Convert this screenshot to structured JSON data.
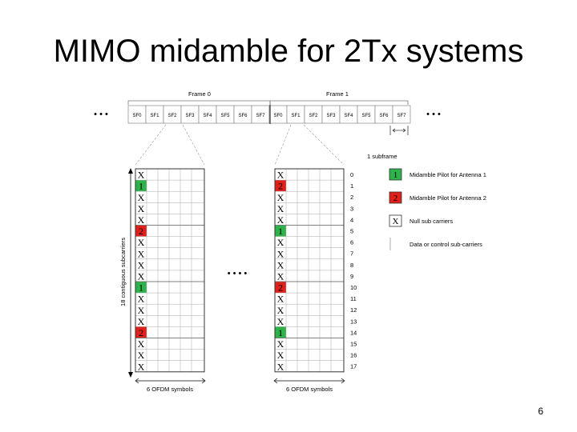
{
  "slide": {
    "title": "MIMO midamble for 2Tx systems",
    "page_number": "6"
  },
  "frames": {
    "frame0_label": "Frame 0",
    "frame1_label": "Frame 1",
    "ellipsis": "• • •",
    "subframes": [
      "SF0",
      "SF1",
      "SF2",
      "SF3",
      "SF4",
      "SF5",
      "SF6",
      "SF7",
      "SF0",
      "SF1",
      "SF2",
      "SF3",
      "SF4",
      "SF5",
      "SF6",
      "SF7"
    ],
    "subframe_label": "1 subframe"
  },
  "grids": {
    "left_axis_label": "18 contiguous subcarriers",
    "left_bottom_label": "6 OFDM symbols",
    "right_bottom_label": "6 OFDM symbols",
    "between_ellipsis": "• • • •",
    "row_numbers": [
      "0",
      "1",
      "2",
      "3",
      "4",
      "5",
      "6",
      "7",
      "8",
      "9",
      "10",
      "11",
      "12",
      "13",
      "14",
      "15",
      "16",
      "17"
    ],
    "left_cells": [
      "X",
      "1",
      "X",
      "X",
      "X",
      "2",
      "X",
      "X",
      "X",
      "X",
      "1",
      "X",
      "X",
      "X",
      "2",
      "X",
      "X",
      "X"
    ],
    "right_cells": [
      "X",
      "2",
      "X",
      "X",
      "X",
      "1",
      "X",
      "X",
      "X",
      "X",
      "2",
      "X",
      "X",
      "X",
      "1",
      "X",
      "X",
      "X"
    ]
  },
  "legend": {
    "items": [
      {
        "symbol": "1",
        "label": "Midamble Pilot for Antenna 1",
        "color": "#2db34a"
      },
      {
        "symbol": "2",
        "label": "Midamble Pilot for Antenna 2",
        "color": "#e0201a"
      },
      {
        "symbol": "X",
        "label": "Null sub carriers",
        "color": "#ffffff"
      },
      {
        "symbol": "",
        "label": "Data or control sub-carriers",
        "color": "#ffffff"
      }
    ]
  },
  "colors": {
    "pilot1": "#2db34a",
    "pilot2": "#e0201a"
  }
}
